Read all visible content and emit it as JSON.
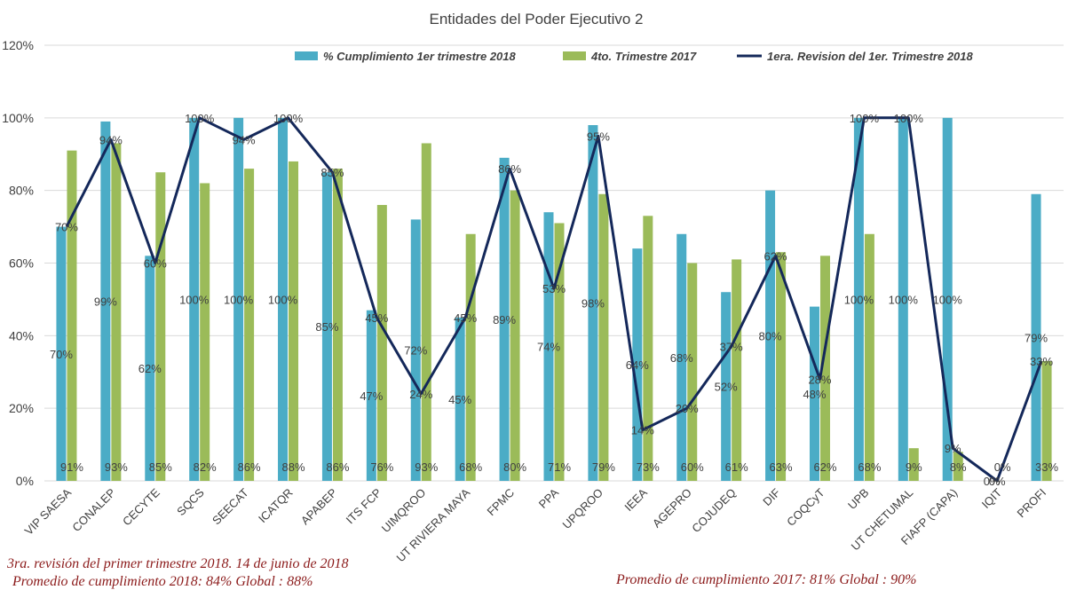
{
  "chart_data": {
    "type": "bar",
    "title": "Entidades del Poder Ejecutivo 2",
    "xlabel": "",
    "ylabel": "",
    "ylim": [
      0,
      120
    ],
    "yticks": [
      "0%",
      "20%",
      "40%",
      "60%",
      "80%",
      "100%",
      "120%"
    ],
    "grid": true,
    "legend_position": "top",
    "categories": [
      "VIP SAESA",
      "CONALEP",
      "CECYTE",
      "SQCS",
      "SEECAT",
      "ICATQR",
      "APABEP",
      "ITS FCP",
      "UIMQROO",
      "UT RIVIERA MAYA",
      "FPMC",
      "PPA",
      "UPQROO",
      "IEEA",
      "AGEPRO",
      "COJUDEQ",
      "DIF",
      "COQCyT",
      "UPB",
      "UT CHETUMAL",
      "FIAFP (CAPA)",
      "IQIT",
      "PROFI"
    ],
    "series": [
      {
        "name": "% Cumplimiento 1er trimestre 2018",
        "type": "bar",
        "color": "#4bacc6",
        "values": [
          70,
          99,
          62,
          100,
          100,
          100,
          85,
          47,
          72,
          45,
          89,
          74,
          98,
          64,
          68,
          52,
          80,
          48,
          100,
          100,
          100,
          0,
          79
        ],
        "labels": [
          "70%",
          "99%",
          "62%",
          "100%",
          "100%",
          "100%",
          "85%",
          "47%",
          "72%",
          "45%",
          "89%",
          "74%",
          "98%",
          "64%",
          "68%",
          "52%",
          "80%",
          "48%",
          "100%",
          "100%",
          "100%",
          "0%",
          "79%"
        ]
      },
      {
        "name": "4to. Trimestre 2017",
        "type": "bar",
        "color": "#9bbb59",
        "values": [
          91,
          93,
          85,
          82,
          86,
          88,
          86,
          76,
          93,
          68,
          80,
          71,
          79,
          73,
          60,
          61,
          63,
          62,
          68,
          9,
          8,
          0,
          33
        ],
        "labels": [
          "91%",
          "93%",
          "85%",
          "82%",
          "86%",
          "88%",
          "86%",
          "76%",
          "93%",
          "68%",
          "80%",
          "71%",
          "79%",
          "73%",
          "60%",
          "61%",
          "63%",
          "62%",
          "68%",
          "9%",
          "8%",
          "0%",
          "33%"
        ]
      },
      {
        "name": "1era. Revision del 1er. Trimestre 2018",
        "type": "line",
        "color": "#14285a",
        "values": [
          70,
          94,
          60,
          100,
          94,
          100,
          85,
          45,
          24,
          45,
          86,
          53,
          95,
          14,
          20,
          37,
          62,
          28,
          100,
          100,
          9,
          0,
          33
        ],
        "labels": [
          "70%",
          "94%",
          "60%",
          "100%",
          "94%",
          "100%",
          "85%",
          "45%",
          "24%",
          "45%",
          "86%",
          "53%",
          "95%",
          "14%",
          "20%",
          "37%",
          "62%",
          "28%",
          "100%",
          "100%",
          "9%",
          "0%",
          "33%"
        ]
      }
    ]
  },
  "notes": {
    "line1": "3ra. revisión del primer trimestre 2018.    14 de junio de 2018",
    "line2": "Promedio de cumplimiento 2018: 84%     Global : 88%",
    "line3": "Promedio de cumplimiento 2017: 81%     Global : 90%"
  }
}
